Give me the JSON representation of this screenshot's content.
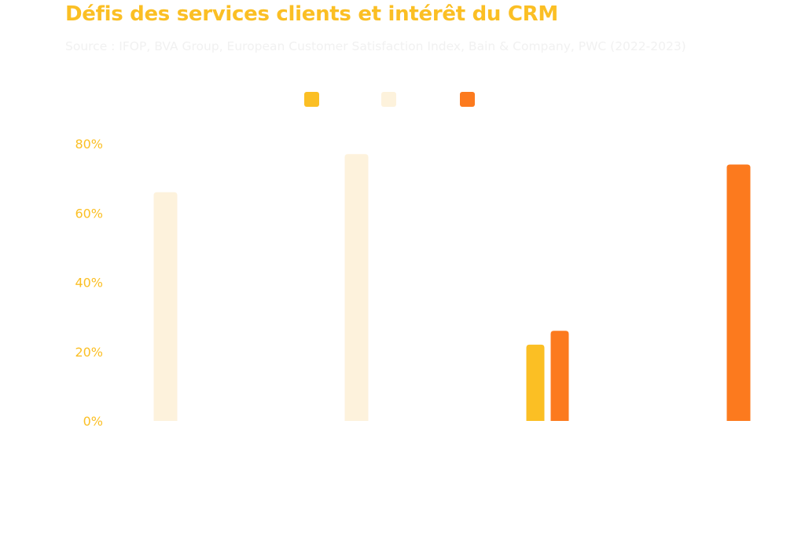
{
  "chart_data": {
    "type": "bar",
    "title": "Défis des services clients et intérêt du CRM",
    "subtitle": "Source : IFOP, BVA Group, European Customer Satisfaction Index, Bain & Company, PWC (2022-2023)",
    "xlabel": "",
    "ylabel": "",
    "ylim": [
      0,
      80
    ],
    "yticks": [
      "0%",
      "20%",
      "40%",
      "60%",
      "80%"
    ],
    "ytick_values": [
      0,
      20,
      40,
      60,
      80
    ],
    "grid": false,
    "legend_position": "top-center",
    "category_count": 4,
    "series": [
      {
        "color": "#FBBF24",
        "values": [
          null,
          null,
          22,
          null
        ]
      },
      {
        "color": "#FDF2DC",
        "values": [
          66,
          77,
          null,
          null
        ]
      },
      {
        "color": "#FC7A1E",
        "values": [
          null,
          null,
          26,
          74
        ]
      }
    ]
  }
}
